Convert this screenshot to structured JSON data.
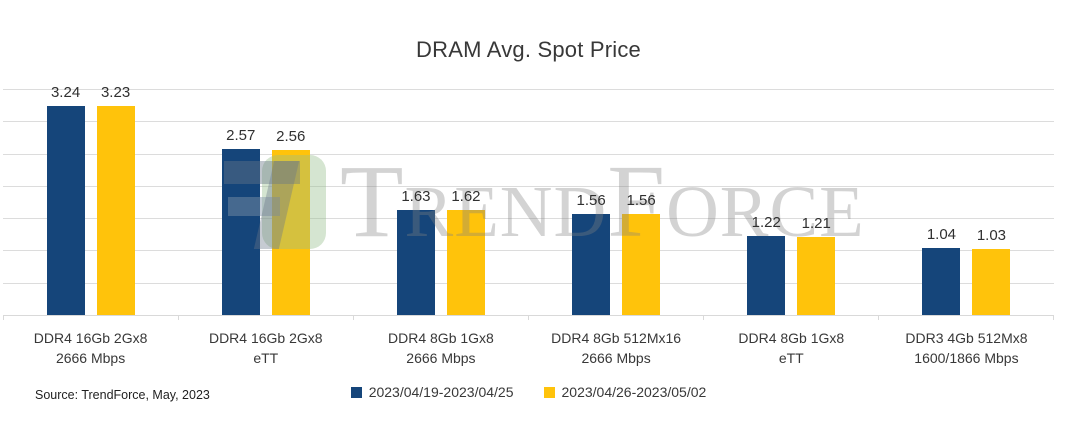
{
  "title": "DRAM Avg. Spot Price",
  "source_note": "Source: TrendForce, May, 2023",
  "watermark": {
    "text": "TrendForce"
  },
  "colors": {
    "series1_blue": "#15457A",
    "series2_yellow": "#FFC30B",
    "gridline": "#D9D9D9",
    "text": "#383838"
  },
  "chart_data": {
    "type": "bar",
    "title": "DRAM Avg. Spot Price",
    "categories": [
      [
        "DDR4 16Gb 2Gx8",
        "2666 Mbps"
      ],
      [
        "DDR4 16Gb 2Gx8",
        "eTT"
      ],
      [
        "DDR4 8Gb 1Gx8",
        "2666 Mbps"
      ],
      [
        "DDR4 8Gb 512Mx16",
        "2666 Mbps"
      ],
      [
        "DDR4 8Gb 1Gx8",
        "eTT"
      ],
      [
        "DDR3 4Gb 512Mx8",
        "1600/1866 Mbps"
      ]
    ],
    "series": [
      {
        "name": "2023/04/19-2023/04/25",
        "color": "#15457A",
        "values": [
          3.24,
          2.57,
          1.63,
          1.56,
          1.22,
          1.04
        ]
      },
      {
        "name": "2023/04/26-2023/05/02",
        "color": "#FFC30B",
        "values": [
          3.23,
          2.56,
          1.62,
          1.56,
          1.21,
          1.03
        ]
      }
    ],
    "xlabel": "",
    "ylabel": "",
    "ylim": [
      0,
      3.5
    ],
    "gridline_step": 0.5,
    "grid": true,
    "y_axis_labels_visible": false,
    "data_labels": true,
    "legend_position": "bottom-center"
  }
}
